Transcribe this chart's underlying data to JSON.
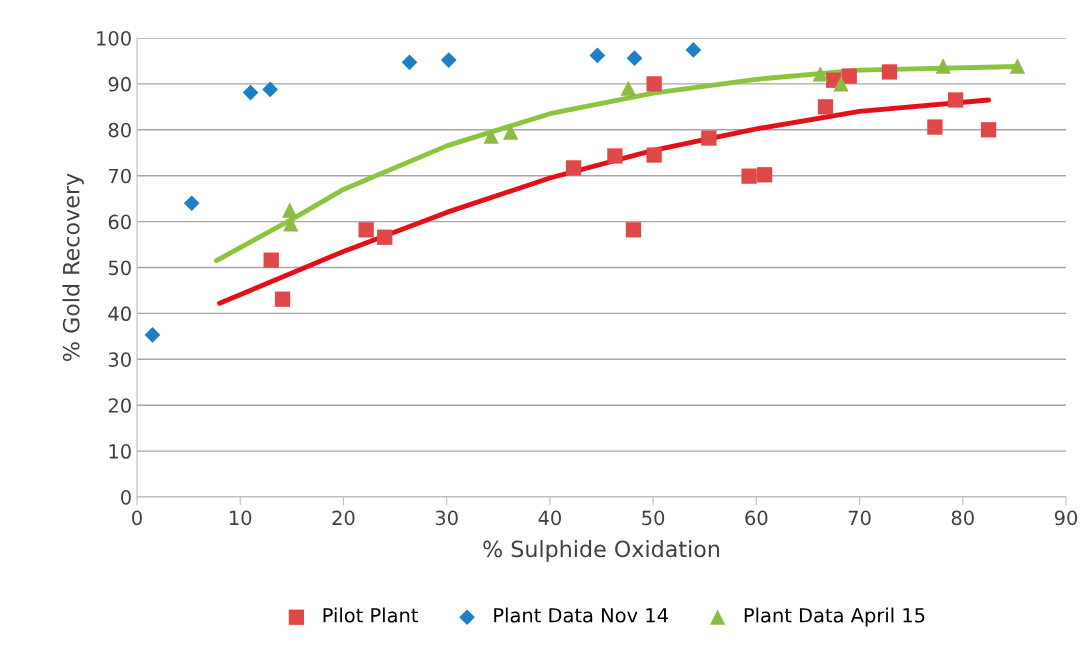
{
  "chart_data": {
    "type": "scatter",
    "xlabel": "% Sulphide Oxidation",
    "ylabel": "% Gold Recovery",
    "xlim": [
      0,
      90
    ],
    "xticks": [
      0,
      10,
      20,
      30,
      40,
      50,
      60,
      70,
      80,
      90
    ],
    "ylim": [
      0,
      100
    ],
    "yticks": [
      0,
      10,
      20,
      30,
      40,
      50,
      60,
      70,
      80,
      90,
      100
    ],
    "grid": "y",
    "legend": "bottom",
    "series": [
      {
        "name": "Pilot Plant",
        "marker": "square",
        "color": "#e04848",
        "x": [
          13.0,
          14.1,
          22.2,
          24.0,
          42.3,
          46.3,
          48.1,
          50.1,
          50.1,
          55.4,
          59.3,
          60.8,
          66.7,
          67.5,
          69.0,
          72.9,
          77.3,
          79.3,
          82.5
        ],
        "values": [
          51.6,
          43.1,
          58.2,
          56.6,
          71.7,
          74.3,
          58.2,
          90.0,
          74.5,
          78.2,
          69.9,
          70.2,
          85.0,
          90.8,
          91.7,
          92.6,
          80.6,
          86.5,
          80.0
        ]
      },
      {
        "name": "Plant Data Nov 14",
        "marker": "diamond",
        "color": "#1f7fc4",
        "x": [
          1.5,
          5.3,
          11.0,
          12.9,
          26.4,
          30.2,
          44.6,
          48.2,
          53.9
        ],
        "values": [
          35.3,
          64.0,
          88.1,
          88.8,
          94.7,
          95.2,
          96.2,
          95.6,
          97.4
        ]
      },
      {
        "name": "Plant Data April 15",
        "marker": "triangle",
        "color": "#8bba45",
        "x": [
          14.8,
          14.9,
          34.3,
          36.2,
          47.6,
          66.2,
          68.2,
          78.1,
          85.3
        ],
        "values": [
          62.5,
          59.5,
          78.6,
          79.5,
          89.1,
          92.2,
          90.0,
          93.9,
          93.9
        ]
      },
      {
        "type": "line",
        "marker": "none",
        "color": "#e3101c",
        "x": [
          8,
          20,
          30,
          40,
          50,
          60,
          70,
          82.5
        ],
        "values": [
          42.2,
          53.5,
          62,
          69.5,
          75.5,
          80.2,
          84,
          86.5
        ]
      },
      {
        "type": "line",
        "marker": "none",
        "color": "#8bc43f",
        "x": [
          7.7,
          15,
          20,
          30,
          40,
          50,
          60,
          70,
          85.3
        ],
        "values": [
          51.5,
          60.5,
          67,
          76.5,
          83.5,
          88,
          91,
          93,
          93.8
        ]
      }
    ]
  }
}
